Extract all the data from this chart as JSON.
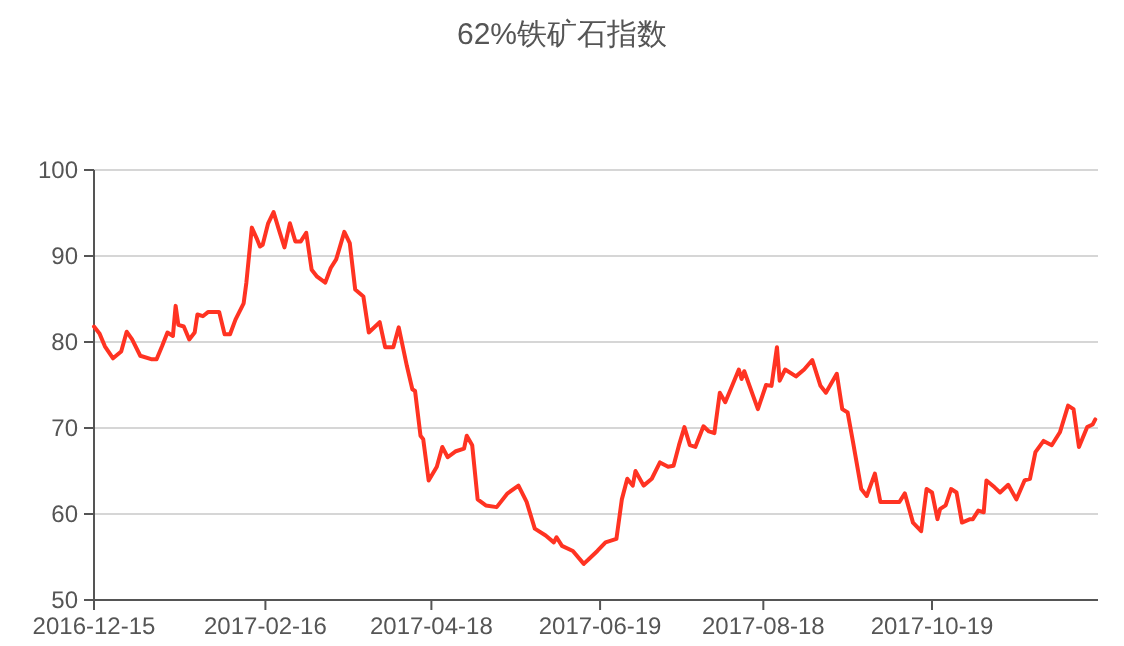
{
  "chart_data": {
    "type": "line",
    "title": "62%铁矿石指数",
    "x": [
      "2016-12-15",
      "2016-12-17",
      "2016-12-19",
      "2016-12-22",
      "2016-12-25",
      "2016-12-27",
      "2016-12-29",
      "2017-01-01",
      "2017-01-05",
      "2017-01-07",
      "2017-01-09",
      "2017-01-11",
      "2017-01-13",
      "2017-01-14",
      "2017-01-15",
      "2017-01-17",
      "2017-01-19",
      "2017-01-21",
      "2017-01-22",
      "2017-01-24",
      "2017-01-26",
      "2017-01-30",
      "2017-02-01",
      "2017-02-03",
      "2017-02-05",
      "2017-02-08",
      "2017-02-09",
      "2017-02-11",
      "2017-02-13",
      "2017-02-14",
      "2017-02-15",
      "2017-02-17",
      "2017-02-19",
      "2017-02-21",
      "2017-02-23",
      "2017-02-25",
      "2017-02-27",
      "2017-03-01",
      "2017-03-03",
      "2017-03-05",
      "2017-03-07",
      "2017-03-10",
      "2017-03-12",
      "2017-03-14",
      "2017-03-17",
      "2017-03-19",
      "2017-03-21",
      "2017-03-24",
      "2017-03-26",
      "2017-03-30",
      "2017-04-01",
      "2017-04-04",
      "2017-04-06",
      "2017-04-09",
      "2017-04-11",
      "2017-04-12",
      "2017-04-14",
      "2017-04-15",
      "2017-04-17",
      "2017-04-20",
      "2017-04-22",
      "2017-04-24",
      "2017-04-27",
      "2017-04-30",
      "2017-05-01",
      "2017-05-03",
      "2017-05-05",
      "2017-05-08",
      "2017-05-12",
      "2017-05-16",
      "2017-05-20",
      "2017-05-23",
      "2017-05-26",
      "2017-05-30",
      "2017-06-02",
      "2017-06-03",
      "2017-06-05",
      "2017-06-09",
      "2017-06-13",
      "2017-06-15",
      "2017-06-18",
      "2017-06-21",
      "2017-06-25",
      "2017-06-27",
      "2017-06-29",
      "2017-07-01",
      "2017-07-02",
      "2017-07-05",
      "2017-07-08",
      "2017-07-11",
      "2017-07-14",
      "2017-07-16",
      "2017-07-18",
      "2017-07-20",
      "2017-07-22",
      "2017-07-24",
      "2017-07-27",
      "2017-07-29",
      "2017-07-31",
      "2017-08-02",
      "2017-08-04",
      "2017-08-06",
      "2017-08-09",
      "2017-08-10",
      "2017-08-11",
      "2017-08-16",
      "2017-08-19",
      "2017-08-21",
      "2017-08-23",
      "2017-08-24",
      "2017-08-26",
      "2017-08-30",
      "2017-09-02",
      "2017-09-05",
      "2017-09-08",
      "2017-09-10",
      "2017-09-14",
      "2017-09-16",
      "2017-09-18",
      "2017-09-20",
      "2017-09-23",
      "2017-09-25",
      "2017-09-28",
      "2017-09-30",
      "2017-10-04",
      "2017-10-07",
      "2017-10-09",
      "2017-10-12",
      "2017-10-15",
      "2017-10-17",
      "2017-10-19",
      "2017-10-21",
      "2017-10-22",
      "2017-10-24",
      "2017-10-26",
      "2017-10-28",
      "2017-10-30",
      "2017-11-02",
      "2017-11-03",
      "2017-11-05",
      "2017-11-07",
      "2017-11-08",
      "2017-11-11",
      "2017-11-13",
      "2017-11-16",
      "2017-11-19",
      "2017-11-22",
      "2017-11-24",
      "2017-11-26",
      "2017-11-29",
      "2017-12-02",
      "2017-12-05",
      "2017-12-08",
      "2017-12-10",
      "2017-12-12",
      "2017-12-15",
      "2017-12-17",
      "2017-12-18"
    ],
    "series": [
      {
        "color": "#ff3322",
        "values": [
          81.8,
          81,
          79.5,
          78.1,
          78.9,
          81.2,
          80.3,
          78.4,
          78,
          78,
          79.5,
          81.1,
          80.7,
          84.2,
          82,
          81.8,
          80.3,
          81.1,
          83.2,
          83,
          83.5,
          83.5,
          80.9,
          80.9,
          82.6,
          84.5,
          86.9,
          93.3,
          91.9,
          91.1,
          91.3,
          93.8,
          95.1,
          93,
          91,
          93.8,
          91.7,
          91.7,
          92.7,
          88.4,
          87.6,
          86.9,
          88.6,
          89.6,
          92.8,
          91.5,
          86.1,
          85.3,
          81.1,
          82.3,
          79.4,
          79.4,
          81.7,
          77.2,
          74.5,
          74.3,
          69.1,
          68.7,
          63.9,
          65.5,
          67.8,
          66.6,
          67.3,
          67.6,
          69.1,
          68,
          61.7,
          61,
          60.8,
          62.4,
          63.3,
          61.4,
          58.3,
          57.5,
          56.7,
          57.3,
          56.3,
          55.7,
          54.2,
          54.8,
          55.7,
          56.7,
          57.1,
          61.7,
          64.1,
          63.3,
          65,
          63.3,
          64.1,
          66,
          65.5,
          65.6,
          68,
          70.1,
          68,
          67.8,
          70.2,
          69.6,
          69.4,
          74.1,
          73,
          74.5,
          76.8,
          75.7,
          76.6,
          72.2,
          75,
          74.9,
          79.4,
          75.5,
          76.8,
          76,
          76.8,
          77.9,
          74.9,
          74.1,
          76.3,
          72.2,
          71.8,
          68.3,
          62.9,
          62.1,
          64.7,
          61.4,
          61.4,
          61.4,
          62.4,
          59,
          58,
          62.9,
          62.5,
          59.4,
          60.6,
          61,
          62.9,
          62.5,
          59,
          59.4,
          59.4,
          60.4,
          60.2,
          63.9,
          63.1,
          62.5,
          63.4,
          61.7,
          63.9,
          64.1,
          67.2,
          68.5,
          68,
          69.5,
          72.6,
          72.2,
          67.8,
          70.1,
          70.4,
          71
        ]
      }
    ],
    "xlim": [
      "2016-12-15",
      "2017-12-19"
    ],
    "xticks": [
      "2016-12-15",
      "2017-02-16",
      "2017-04-18",
      "2017-06-19",
      "2017-08-18",
      "2017-10-19"
    ],
    "ylim": [
      50,
      100
    ],
    "yticks": [
      50,
      60,
      70,
      80,
      90,
      100
    ],
    "grid": "y"
  }
}
